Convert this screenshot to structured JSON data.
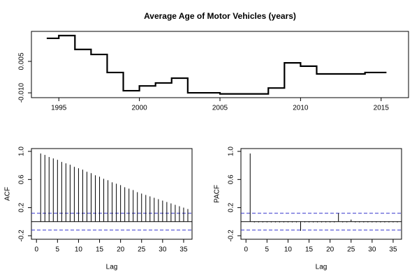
{
  "chart_data": [
    {
      "type": "line",
      "step": true,
      "title": "Average Age of Motor Vehicles (years)",
      "color": "#000000",
      "x": [
        1994.25,
        1995,
        1996,
        1997,
        1998,
        1999,
        2000,
        2001,
        2002,
        2003,
        2005,
        2008,
        2009,
        2010,
        2011,
        2014,
        2015.33
      ],
      "values": [
        0.016,
        0.0173,
        0.0107,
        0.0083,
        -0.0003,
        -0.009,
        -0.0067,
        -0.0053,
        -0.003,
        -0.01,
        -0.0105,
        -0.0077,
        0.0043,
        0.0027,
        -0.001,
        -0.0003,
        -0.0003
      ],
      "xlim": [
        1993.3,
        2016.7
      ],
      "xticks": [
        1995,
        2000,
        2005,
        2010,
        2015
      ],
      "ylim": [
        -0.0123,
        0.0193
      ],
      "yticks": [
        {
          "value": -0.01,
          "label": "-0.010"
        },
        {
          "value": 0.005,
          "label": "0.005"
        }
      ]
    },
    {
      "type": "acf",
      "xlabel": "Lag",
      "ylabel": "ACF",
      "color": "#000000",
      "ci_color": "#3333cc",
      "ci": 0.12,
      "x": [
        1,
        2,
        3,
        4,
        5,
        6,
        7,
        8,
        9,
        10,
        11,
        12,
        13,
        14,
        15,
        16,
        17,
        18,
        19,
        20,
        21,
        22,
        23,
        24,
        25,
        26,
        27,
        28,
        29,
        30,
        31,
        32,
        33,
        34,
        35,
        36
      ],
      "values": [
        0.97,
        0.95,
        0.92,
        0.9,
        0.88,
        0.85,
        0.83,
        0.81,
        0.78,
        0.76,
        0.74,
        0.71,
        0.69,
        0.66,
        0.64,
        0.61,
        0.59,
        0.56,
        0.54,
        0.52,
        0.49,
        0.47,
        0.45,
        0.42,
        0.4,
        0.38,
        0.36,
        0.34,
        0.32,
        0.3,
        0.28,
        0.26,
        0.24,
        0.22,
        0.2,
        0.18
      ],
      "xlim": [
        -1.2,
        37
      ],
      "xticks": [
        0,
        5,
        10,
        15,
        20,
        25,
        30,
        35
      ],
      "ylim": [
        -0.25,
        1.04
      ],
      "yticks": [
        -0.2,
        0.2,
        0.6,
        {
          "value": 1,
          "label": "1.0"
        }
      ]
    },
    {
      "type": "acf",
      "xlabel": "Lag",
      "ylabel": "PACF",
      "color": "#000000",
      "ci_color": "#3333cc",
      "ci": 0.12,
      "x": [
        1,
        2,
        3,
        4,
        5,
        6,
        7,
        8,
        9,
        10,
        11,
        12,
        13,
        14,
        15,
        16,
        17,
        18,
        19,
        20,
        21,
        22,
        23,
        24,
        25,
        26,
        27,
        28,
        29,
        30,
        31,
        32,
        33,
        34,
        35,
        36
      ],
      "values": [
        0.97,
        -0.01,
        -0.01,
        -0.01,
        -0.01,
        -0.01,
        -0.01,
        -0.01,
        -0.01,
        -0.01,
        -0.01,
        -0.01,
        -0.13,
        -0.01,
        -0.01,
        -0.01,
        -0.01,
        -0.01,
        -0.01,
        -0.01,
        -0.01,
        0.12,
        -0.01,
        -0.01,
        0.03,
        -0.01,
        -0.01,
        -0.01,
        -0.01,
        -0.01,
        -0.01,
        -0.01,
        -0.01,
        -0.01,
        -0.01,
        -0.01
      ],
      "xlim": [
        -1.2,
        37
      ],
      "xticks": [
        0,
        5,
        10,
        15,
        20,
        25,
        30,
        35
      ],
      "ylim": [
        -0.25,
        1.04
      ],
      "yticks": [
        -0.2,
        0.2,
        0.6,
        {
          "value": 1,
          "label": "1.0"
        }
      ]
    }
  ]
}
